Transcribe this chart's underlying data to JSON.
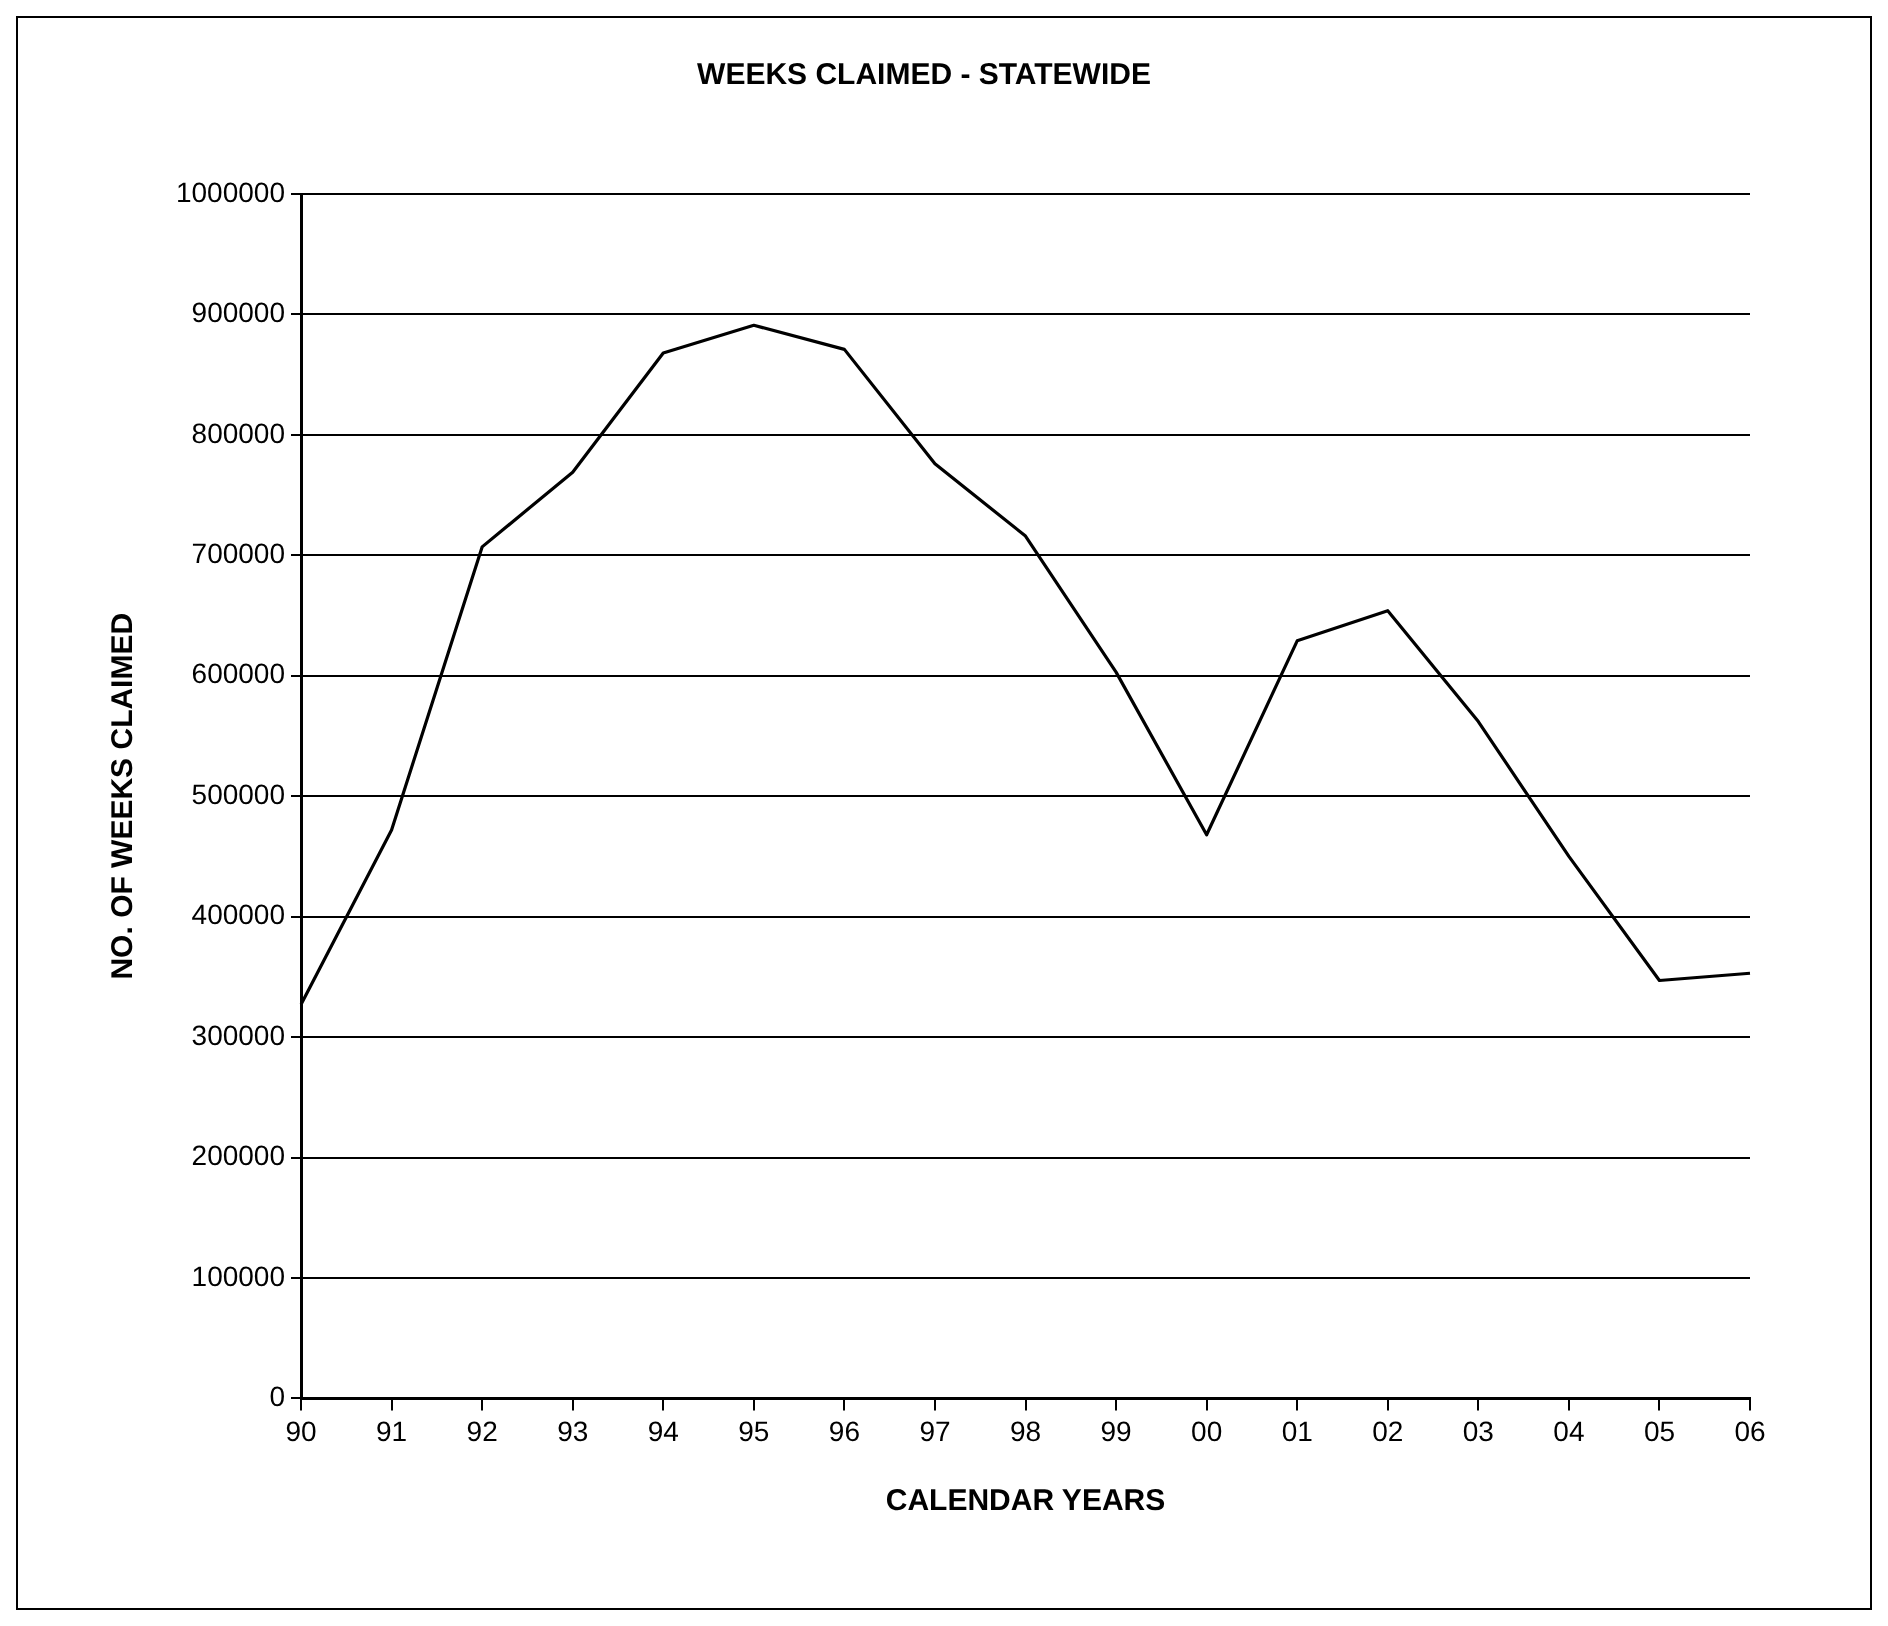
{
  "chart_data": {
    "type": "line",
    "title": "WEEKS CLAIMED - STATEWIDE",
    "xlabel": "CALENDAR YEARS",
    "ylabel": "NO. OF WEEKS CLAIMED",
    "categories": [
      "90",
      "91",
      "92",
      "93",
      "94",
      "95",
      "96",
      "97",
      "98",
      "99",
      "00",
      "01",
      "02",
      "03",
      "04",
      "05",
      "06"
    ],
    "series": [
      {
        "color": "#000000",
        "values": [
          327000,
          472000,
          707000,
          769000,
          868000,
          891000,
          871000,
          776000,
          716000,
          603000,
          468000,
          629000,
          654000,
          562000,
          450000,
          347000,
          353000
        ]
      }
    ],
    "ylim": [
      0,
      1000000
    ],
    "yticks": [
      0,
      100000,
      200000,
      300000,
      400000,
      500000,
      600000,
      700000,
      800000,
      900000,
      1000000
    ],
    "grid": "y",
    "legend": false,
    "marker": "none",
    "line_style": "solid"
  }
}
